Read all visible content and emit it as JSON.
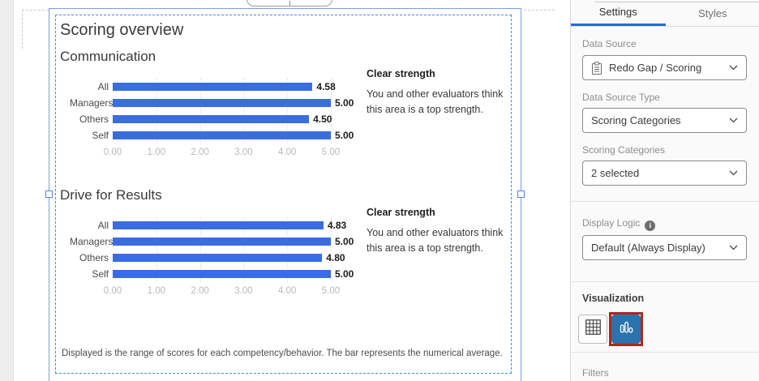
{
  "canvas": {
    "title": "Scoring overview",
    "sections": [
      {
        "heading": "Communication",
        "note_title": "Clear strength",
        "note_body": "You and other evaluators think this area is a top strength."
      },
      {
        "heading": "Drive for Results",
        "note_title": "Clear strength",
        "note_body": "You and other evaluators think this area is a top strength."
      }
    ],
    "footnote": "Displayed is the range of scores for each competency/behavior. The bar represents the numerical average."
  },
  "chart_data": [
    {
      "type": "bar",
      "orientation": "horizontal",
      "title": "Communication",
      "categories": [
        "All",
        "Managers",
        "Others",
        "Self"
      ],
      "values": [
        4.58,
        5.0,
        4.5,
        5.0
      ],
      "value_labels": [
        "4.58",
        "5.00",
        "4.50",
        "5.00"
      ],
      "xlim": [
        0,
        5
      ],
      "x_ticks": [
        "0.00",
        "1.00",
        "2.00",
        "3.00",
        "4.00",
        "5.00"
      ],
      "grid": "vertical-dotted",
      "bar_color": "#3a6de0"
    },
    {
      "type": "bar",
      "orientation": "horizontal",
      "title": "Drive for Results",
      "categories": [
        "All",
        "Managers",
        "Others",
        "Self"
      ],
      "values": [
        4.83,
        5.0,
        4.8,
        5.0
      ],
      "value_labels": [
        "4.83",
        "5.00",
        "4.80",
        "5.00"
      ],
      "xlim": [
        0,
        5
      ],
      "x_ticks": [
        "0.00",
        "1.00",
        "2.00",
        "3.00",
        "4.00",
        "5.00"
      ],
      "grid": "vertical-dotted",
      "bar_color": "#3a6de0"
    }
  ],
  "panel": {
    "tabs": {
      "settings": "Settings",
      "styles": "Styles"
    },
    "data_source": {
      "label": "Data Source",
      "value": "Redo Gap / Scoring"
    },
    "data_source_type": {
      "label": "Data Source Type",
      "value": "Scoring Categories"
    },
    "scoring_categories": {
      "label": "Scoring Categories",
      "value": "2 selected"
    },
    "display_logic": {
      "label": "Display Logic",
      "value": "Default (Always Display)"
    },
    "visualization": {
      "label": "Visualization"
    },
    "filters": {
      "label": "Filters"
    },
    "info_glyph": "i"
  },
  "icons": {
    "data_source_lead": "clipboard-icon",
    "dropdown_caret": "chevron-down-icon",
    "display_logic_help": "info-icon",
    "viz_option_1": "table-icon",
    "viz_option_2": "bar-chart-icon"
  },
  "colors": {
    "bar_blue": "#3a6de0",
    "selection_blue": "#4a86e8",
    "widget_outline_blue": "#7f9ce2",
    "tab_underline_blue": "#2a6bd2",
    "viz_selected_bg": "#2a73ad",
    "annotation_red": "#ae271f"
  }
}
